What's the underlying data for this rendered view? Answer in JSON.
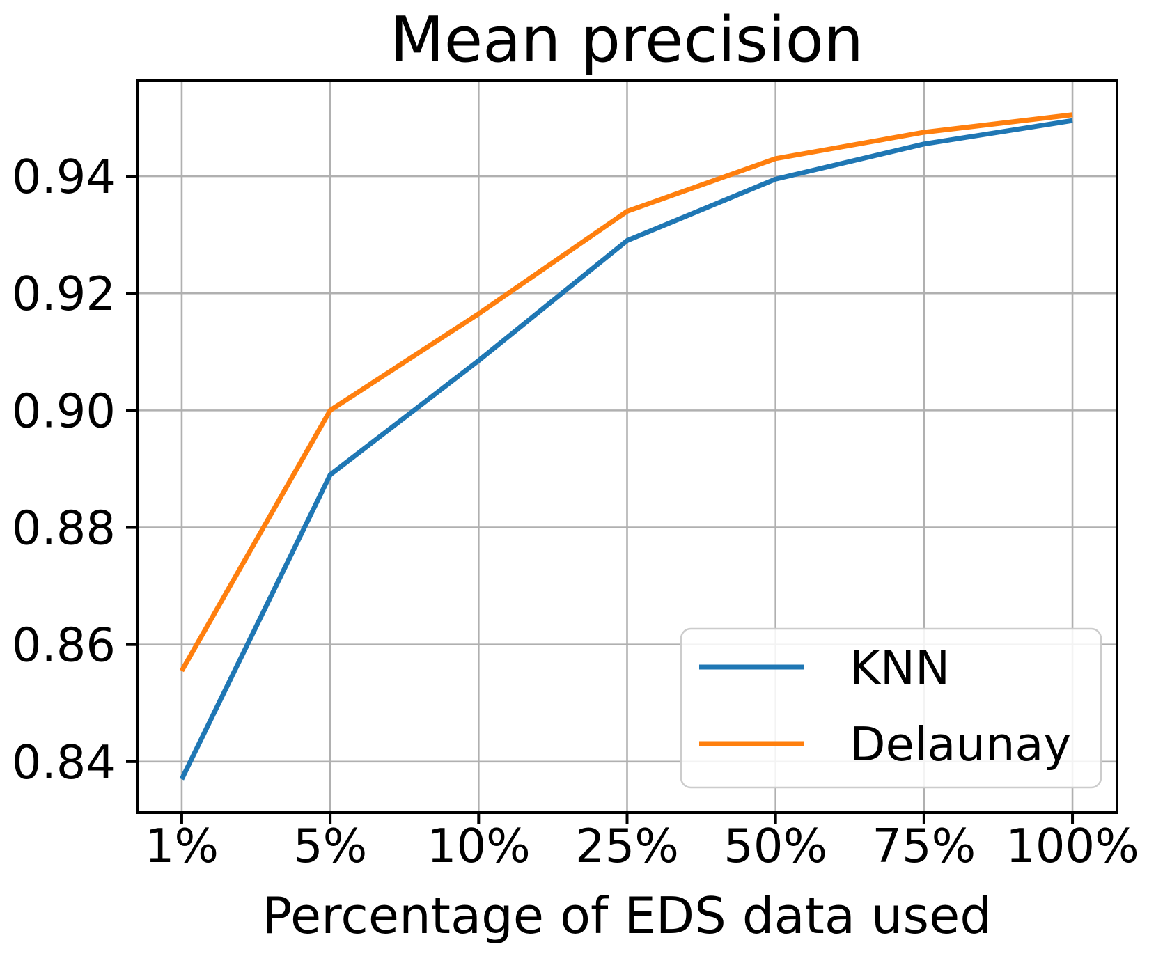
{
  "chart_data": {
    "type": "line",
    "title": "Mean precision",
    "xlabel": "Percentage of EDS data used",
    "ylabel": "",
    "categories": [
      "1%",
      "5%",
      "10%",
      "25%",
      "50%",
      "75%",
      "100%"
    ],
    "series": [
      {
        "name": "KNN",
        "color": "#1f77b4",
        "values": [
          0.837,
          0.889,
          0.9085,
          0.929,
          0.9395,
          0.9455,
          0.9495
        ]
      },
      {
        "name": "Delaunay",
        "color": "#ff7f0e",
        "values": [
          0.8555,
          0.9,
          0.9165,
          0.934,
          0.943,
          0.9475,
          0.9505
        ]
      }
    ],
    "y_ticks": [
      0.84,
      0.86,
      0.88,
      0.9,
      0.92,
      0.94
    ],
    "y_tick_labels": [
      "0.84",
      "0.86",
      "0.88",
      "0.90",
      "0.92",
      "0.94"
    ],
    "ylim": [
      0.8313,
      0.9563
    ],
    "x_margin": 0.3,
    "grid": true,
    "legend_position": "lower right",
    "legend_entries": [
      "KNN",
      "Delaunay"
    ],
    "colors": {
      "background": "#ffffff",
      "grid": "#b0b0b0",
      "spine": "#000000",
      "text": "#000000",
      "legend_edge": "#cccccc",
      "legend_bg": "#ffffff"
    }
  }
}
